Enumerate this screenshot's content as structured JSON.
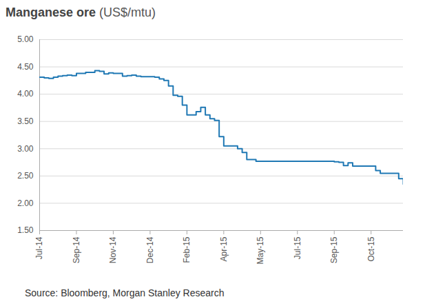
{
  "chart_data": {
    "type": "line",
    "title": "Manganese ore",
    "y_label": "(US$/mtu)",
    "source": "Source: Bloomberg, Morgan Stanley Research",
    "categories": [
      "Jul-14",
      null,
      null,
      null,
      null,
      null,
      null,
      null,
      "Sep-14",
      null,
      null,
      null,
      null,
      null,
      null,
      null,
      "Nov-14",
      null,
      null,
      null,
      null,
      null,
      null,
      null,
      "Dec-14",
      null,
      null,
      null,
      null,
      null,
      null,
      null,
      "Feb-15",
      null,
      null,
      null,
      null,
      null,
      null,
      null,
      "Apr-15",
      null,
      null,
      null,
      null,
      null,
      null,
      null,
      "May-15",
      null,
      null,
      null,
      null,
      null,
      null,
      null,
      "Jul-15",
      null,
      null,
      null,
      null,
      null,
      null,
      null,
      "Sep-15",
      null,
      null,
      null,
      null,
      null,
      null,
      null,
      "Oct-15",
      null,
      null,
      null,
      null,
      null,
      null,
      null
    ],
    "values": [
      4.31,
      4.3,
      4.29,
      4.31,
      4.33,
      4.34,
      4.35,
      4.34,
      4.38,
      4.38,
      4.4,
      4.4,
      4.43,
      4.42,
      4.37,
      4.39,
      4.38,
      4.38,
      4.33,
      4.34,
      4.35,
      4.33,
      4.32,
      4.32,
      4.32,
      4.31,
      4.28,
      4.25,
      4.15,
      3.98,
      3.96,
      3.8,
      3.62,
      3.62,
      3.68,
      3.76,
      3.62,
      3.55,
      3.52,
      3.22,
      3.05,
      3.05,
      3.05,
      3.0,
      2.93,
      2.8,
      2.8,
      2.77,
      2.77,
      2.77,
      2.77,
      2.77,
      2.77,
      2.77,
      2.77,
      2.77,
      2.77,
      2.77,
      2.77,
      2.77,
      2.77,
      2.77,
      2.77,
      2.77,
      2.76,
      2.75,
      2.69,
      2.74,
      2.68,
      2.68,
      2.68,
      2.68,
      2.68,
      2.6,
      2.55,
      2.55,
      2.55,
      2.55,
      2.45,
      2.35
    ],
    "color": "#1f78b4",
    "line_style": "step",
    "ylim": [
      1.5,
      5.0
    ],
    "yticks": [
      {
        "value": 1.5,
        "label": "1.50"
      },
      {
        "value": 2,
        "label": "2.00"
      },
      {
        "value": 2.5,
        "label": "2.50"
      },
      {
        "value": 3,
        "label": "3.00"
      },
      {
        "value": 3.5,
        "label": "3.50"
      },
      {
        "value": 4,
        "label": "4.00"
      },
      {
        "value": 4.5,
        "label": "4.50"
      },
      {
        "value": 5,
        "label": "5.00"
      }
    ],
    "grid": true
  }
}
